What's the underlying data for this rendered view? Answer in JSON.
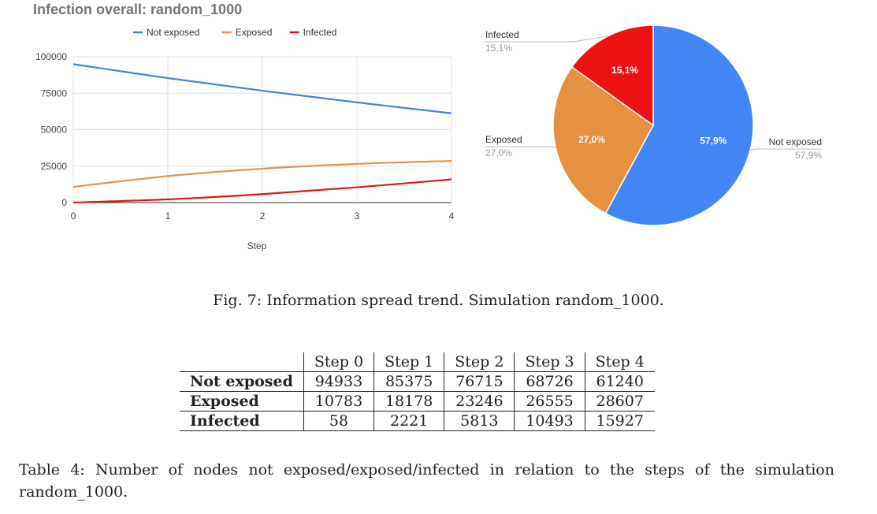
{
  "chart_data": [
    {
      "type": "line",
      "title": "Infection overall: random_1000",
      "xlabel": "Step",
      "ylabel": "",
      "x": [
        0,
        1,
        2,
        3,
        4
      ],
      "xticks": [
        "0",
        "1",
        "2",
        "3",
        "4"
      ],
      "yticks": [
        "0",
        "25000",
        "50000",
        "75000",
        "100000"
      ],
      "ylim": [
        0,
        100000
      ],
      "grid": true,
      "legend": "top",
      "series": [
        {
          "name": "Not exposed",
          "color": "#4a7fe0",
          "values": [
            94933,
            85375,
            76715,
            68726,
            61240
          ]
        },
        {
          "name": "Exposed",
          "color": "#e8914a",
          "values": [
            10783,
            18178,
            23246,
            26555,
            28607
          ]
        },
        {
          "name": "Infected",
          "color": "#d81b1b",
          "values": [
            58,
            2221,
            5813,
            10493,
            15927
          ]
        }
      ]
    },
    {
      "type": "pie",
      "slices": [
        {
          "label": "Not exposed",
          "value": 57.9,
          "display": "57,9%",
          "color": "#4285f4"
        },
        {
          "label": "Exposed",
          "value": 27.0,
          "display": "27,0%",
          "color": "#e69142"
        },
        {
          "label": "Infected",
          "value": 15.1,
          "display": "15,1%",
          "color": "#ee1111"
        }
      ]
    }
  ],
  "figure_caption": "Fig. 7: Information spread trend. Simulation random_1000.",
  "table": {
    "headers": [
      "",
      "Step 0",
      "Step 1",
      "Step 2",
      "Step 3",
      "Step 4"
    ],
    "rows": [
      {
        "label": "Not exposed",
        "values": [
          "94933",
          "85375",
          "76715",
          "68726",
          "61240"
        ]
      },
      {
        "label": "Exposed",
        "values": [
          "10783",
          "18178",
          "23246",
          "26555",
          "28607"
        ]
      },
      {
        "label": "Infected",
        "values": [
          "58",
          "2221",
          "5813",
          "10493",
          "15927"
        ]
      }
    ]
  },
  "table_caption": "Table 4: Number of nodes not exposed/exposed/infected in relation to the steps of the simulation random_1000."
}
